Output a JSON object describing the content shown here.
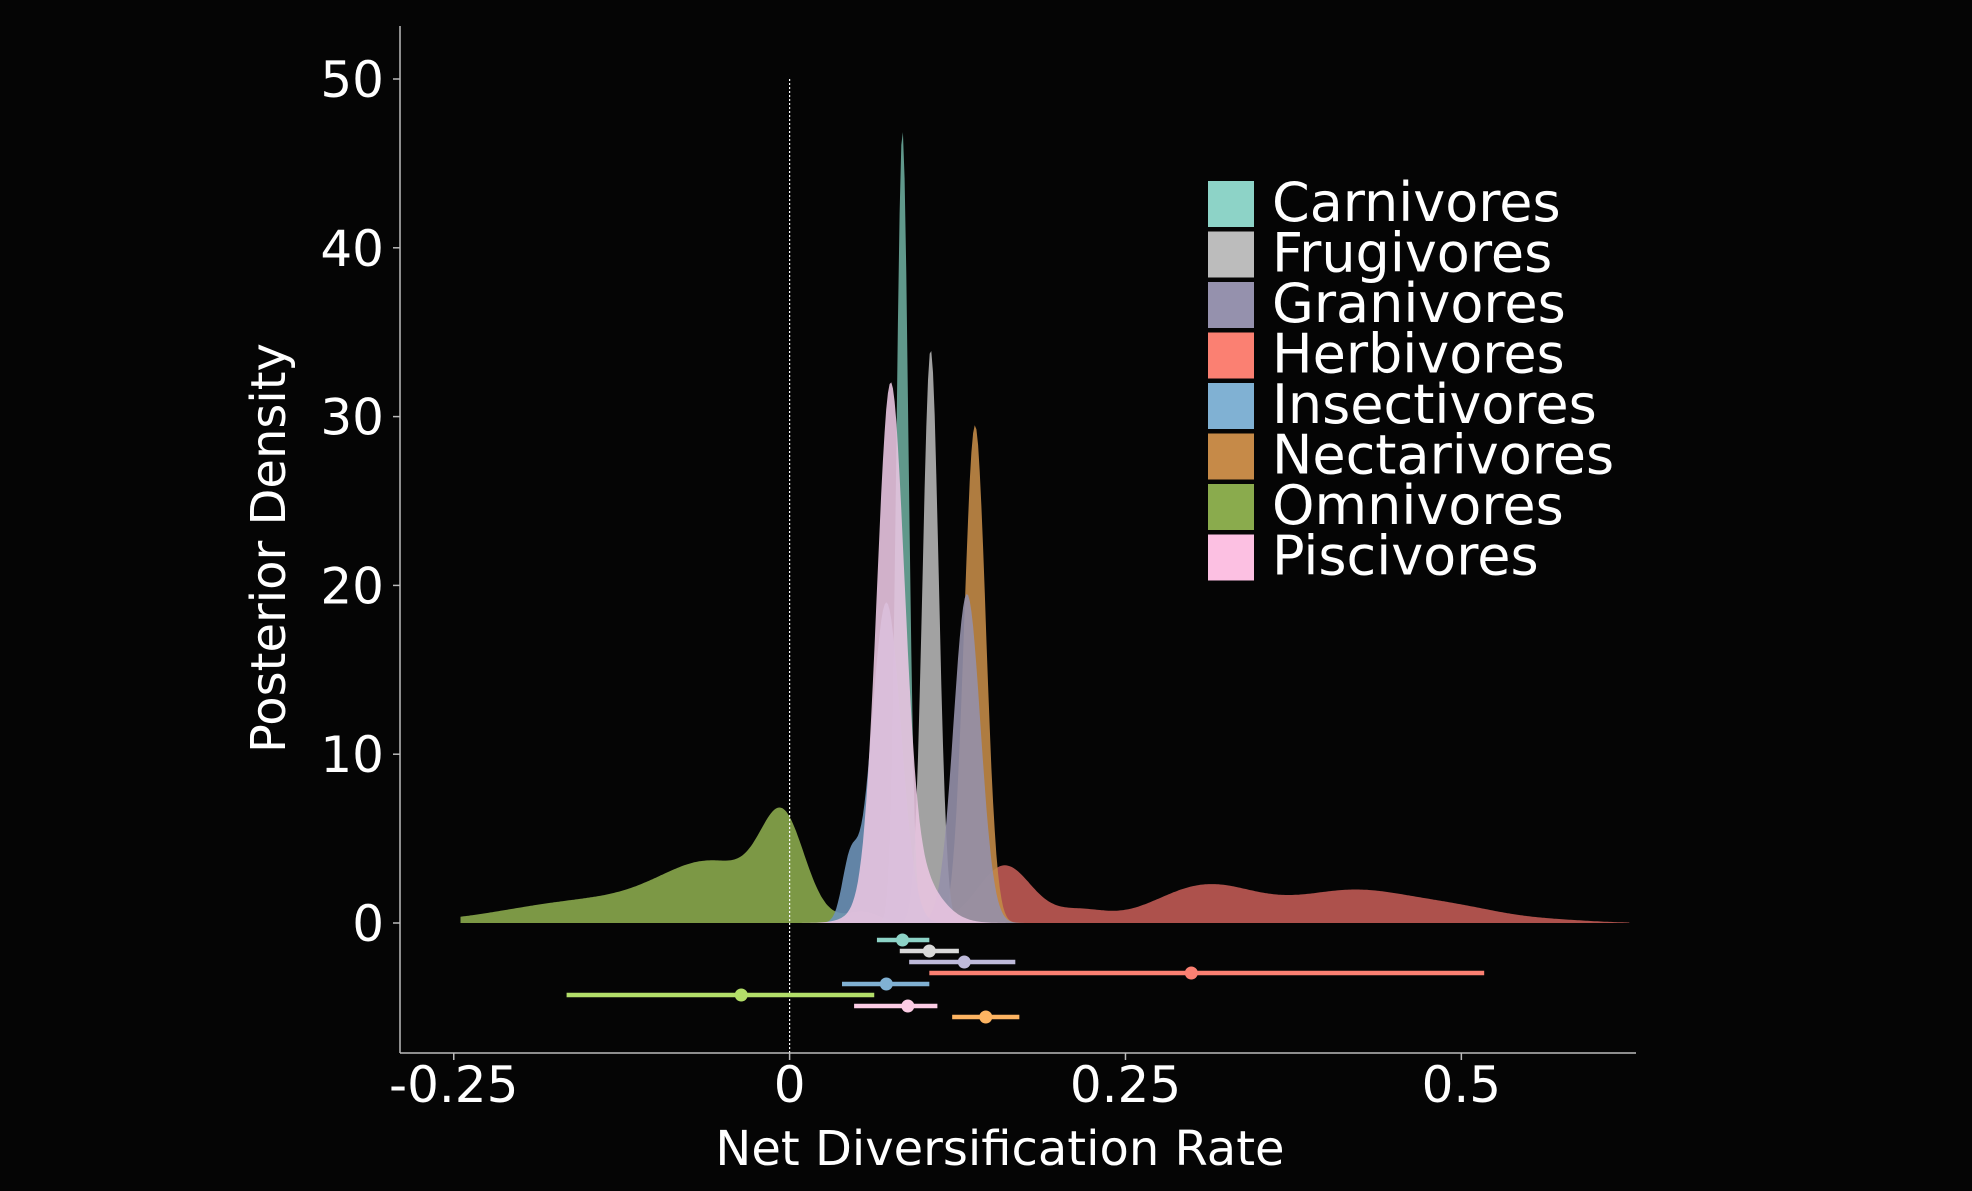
{
  "chart_data": {
    "type": "area",
    "xlabel": "Net Diversification Rate",
    "ylabel": "Posterior Density",
    "xlim": [
      -0.29,
      0.63
    ],
    "ylim": [
      0,
      50
    ],
    "x_ticks": [
      {
        "value": -0.25,
        "label": "-0.25"
      },
      {
        "value": 0,
        "label": "0"
      },
      {
        "value": 0.25,
        "label": "0.25"
      },
      {
        "value": 0.5,
        "label": "0.5"
      }
    ],
    "y_ticks": [
      {
        "value": 0,
        "label": "0"
      },
      {
        "value": 10,
        "label": "10"
      },
      {
        "value": 20,
        "label": "20"
      },
      {
        "value": 30,
        "label": "30"
      },
      {
        "value": 40,
        "label": "40"
      },
      {
        "value": 50,
        "label": "50"
      }
    ],
    "reference_line_x": 0,
    "grid": false,
    "legend_position": "top-right",
    "series": [
      {
        "name": "Omnivores",
        "color": "#8aa84c",
        "components": [
          {
            "mu": -0.005,
            "sd": 0.016,
            "h": 5.2
          },
          {
            "mu": -0.055,
            "sd": 0.04,
            "h": 3.3
          },
          {
            "mu": -0.15,
            "sd": 0.06,
            "h": 1.3
          },
          {
            "mu": 0.055,
            "sd": 0.012,
            "h": 0.6
          }
        ],
        "interval": {
          "low": -0.166,
          "high": 0.063,
          "point": -0.036
        }
      },
      {
        "name": "Herbivores",
        "color": "#c05a54",
        "components": [
          {
            "mu": 0.16,
            "sd": 0.02,
            "h": 3.4
          },
          {
            "mu": 0.215,
            "sd": 0.02,
            "h": 0.7
          },
          {
            "mu": 0.31,
            "sd": 0.038,
            "h": 2.2
          },
          {
            "mu": 0.42,
            "sd": 0.045,
            "h": 1.9
          },
          {
            "mu": 0.5,
            "sd": 0.035,
            "h": 0.7
          },
          {
            "mu": 0.57,
            "sd": 0.03,
            "h": 0.15
          }
        ],
        "interval": {
          "low": 0.104,
          "high": 0.517,
          "point": 0.299
        }
      },
      {
        "name": "Nectarivores",
        "color": "#c28a47",
        "components": [
          {
            "mu": 0.138,
            "sd": 0.008,
            "h": 29.5
          }
        ],
        "interval": {
          "low": 0.121,
          "high": 0.171,
          "point": 0.146
        }
      },
      {
        "name": "Frugivores",
        "color": "#b4b4b4",
        "components": [
          {
            "mu": 0.105,
            "sd": 0.006,
            "h": 34
          }
        ],
        "interval": {
          "low": 0.082,
          "high": 0.126,
          "point": 0.104
        }
      },
      {
        "name": "Granivores",
        "color": "#9590aa",
        "components": [
          {
            "mu": 0.132,
            "sd": 0.01,
            "h": 19.5
          }
        ],
        "interval": {
          "low": 0.089,
          "high": 0.168,
          "point": 0.13
        }
      },
      {
        "name": "Carnivores",
        "color": "#6aa89a",
        "components": [
          {
            "mu": 0.084,
            "sd": 0.0045,
            "h": 47
          }
        ],
        "interval": {
          "low": 0.065,
          "high": 0.104,
          "point": 0.084
        }
      },
      {
        "name": "Insectivores",
        "color": "#6d92b8",
        "components": [
          {
            "mu": 0.072,
            "sd": 0.011,
            "h": 19
          },
          {
            "mu": 0.045,
            "sd": 0.006,
            "h": 3.5
          }
        ],
        "interval": {
          "low": 0.039,
          "high": 0.104,
          "point": 0.072
        }
      },
      {
        "name": "Piscivores",
        "color": "#e8c4e0",
        "components": [
          {
            "mu": 0.075,
            "sd": 0.01,
            "h": 28.5
          },
          {
            "mu": 0.085,
            "sd": 0.02,
            "h": 4
          }
        ],
        "interval": {
          "low": 0.048,
          "high": 0.11,
          "point": 0.088
        }
      }
    ],
    "legend": [
      {
        "label": "Carnivores",
        "color": "#8dd3c7"
      },
      {
        "label": "Frugivores",
        "color": "#bcbcbc"
      },
      {
        "label": "Granivores",
        "color": "#9591ad"
      },
      {
        "label": "Herbivores",
        "color": "#fb8072"
      },
      {
        "label": "Insectivores",
        "color": "#80b1d3"
      },
      {
        "label": "Nectarivores",
        "color": "#c68a48"
      },
      {
        "label": "Omnivores",
        "color": "#8aab4d"
      },
      {
        "label": "Piscivores",
        "color": "#fcc0e2"
      }
    ],
    "intervals_order": [
      {
        "name": "Carnivores",
        "color": "#8dd3c7"
      },
      {
        "name": "Frugivores",
        "color": "#d9d9d9"
      },
      {
        "name": "Granivores",
        "color": "#bebada"
      },
      {
        "name": "Herbivores",
        "color": "#fb8072"
      },
      {
        "name": "Insectivores",
        "color": "#80b1d3"
      },
      {
        "name": "Omnivores",
        "color": "#b3de69"
      },
      {
        "name": "Piscivores",
        "color": "#fccde5"
      },
      {
        "name": "Nectarivores",
        "color": "#fdb462"
      }
    ]
  }
}
